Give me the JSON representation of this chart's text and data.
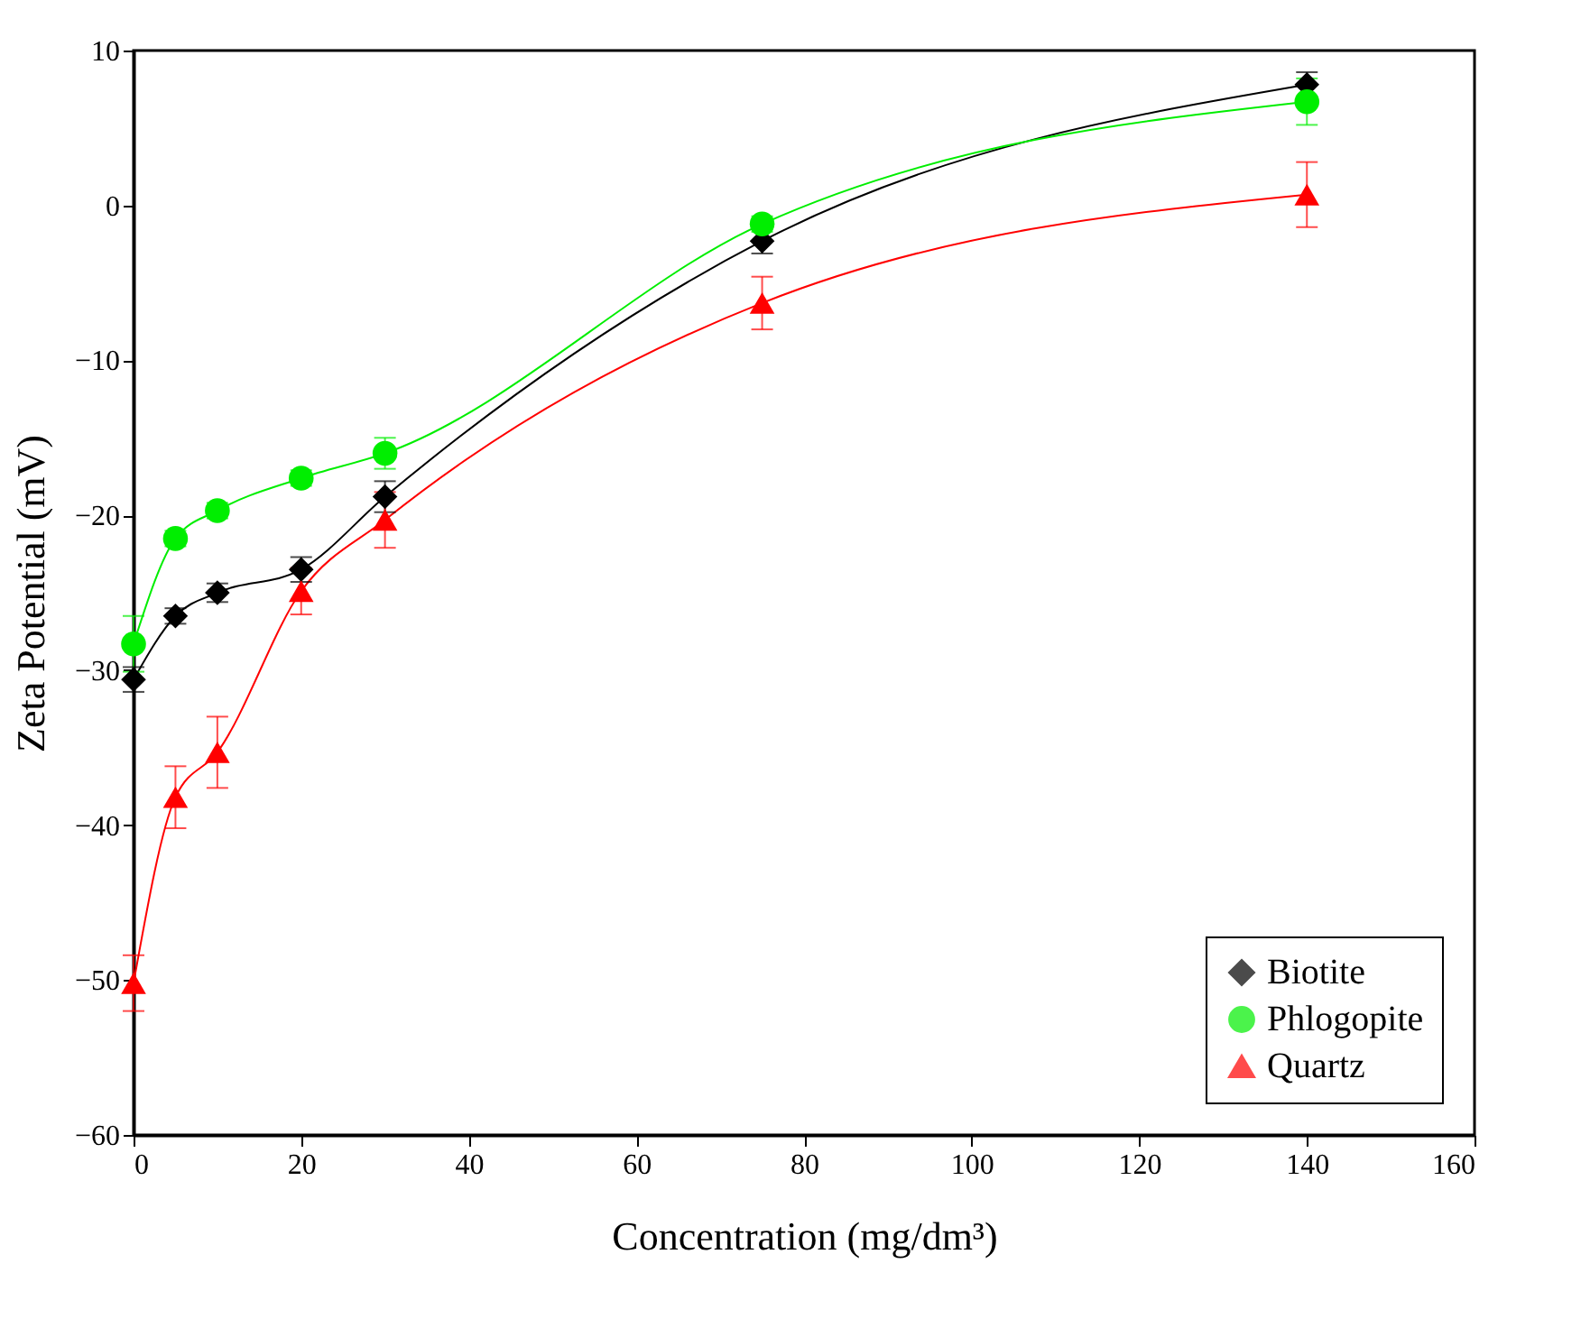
{
  "chart_data": {
    "type": "line",
    "xlabel": "Concentration (mg/dm³)",
    "ylabel": "Zeta Potential (mV)",
    "x": [
      0,
      5,
      10,
      20,
      30,
      75,
      140
    ],
    "series": [
      {
        "name": "Biotite",
        "color": "#000000",
        "marker": "diamond",
        "values": [
          -30.6,
          -26.5,
          -25,
          -23.5,
          -18.8,
          -2.3,
          7.8
        ],
        "errors": [
          0.8,
          0.5,
          0.6,
          0.8,
          1,
          0.8,
          0.8
        ]
      },
      {
        "name": "Phlogopite",
        "color": "#00ee00",
        "marker": "circle",
        "values": [
          -28.3,
          -21.5,
          -19.7,
          -17.6,
          -16,
          -1.2,
          6.7
        ],
        "errors": [
          1.8,
          0.5,
          0.5,
          0.5,
          1,
          0.5,
          1.5
        ]
      },
      {
        "name": "Quartz",
        "color": "#ff0000",
        "marker": "triangle",
        "values": [
          -50.2,
          -38.2,
          -35.3,
          -24.9,
          -20.3,
          -6.3,
          0.7
        ],
        "errors": [
          1.8,
          2,
          2.3,
          1.5,
          1.8,
          1.7,
          2.1
        ]
      }
    ],
    "xlim": [
      0,
      160
    ],
    "xticks": [
      0,
      20,
      40,
      60,
      80,
      100,
      120,
      140,
      160
    ],
    "ylim": [
      -60,
      10
    ],
    "yticks": [
      -60,
      -50,
      -40,
      -30,
      -20,
      -10,
      0,
      10
    ],
    "grid": false,
    "legend": "bottom right"
  }
}
